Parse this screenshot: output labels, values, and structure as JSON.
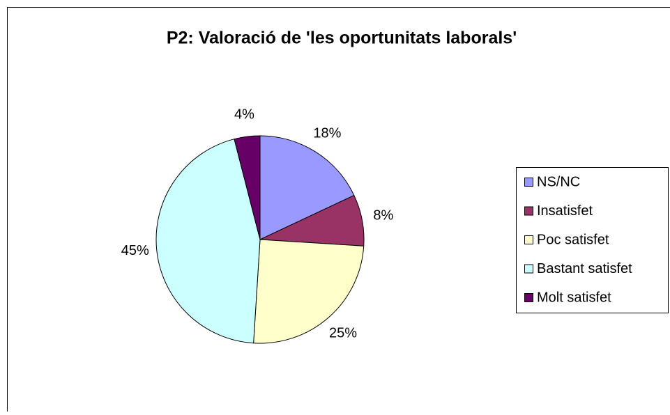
{
  "chart_data": {
    "type": "pie",
    "title": "P2: Valoració de 'les oportunitats laborals'",
    "categories": [
      "NS/NC",
      "Insatisfet",
      "Poc satisfet",
      "Bastant satisfet",
      "Molt satisfet"
    ],
    "values": [
      18,
      8,
      25,
      45,
      4
    ],
    "value_labels": [
      "18%",
      "8%",
      "25%",
      "45%",
      "4%"
    ],
    "colors": [
      "#9999ff",
      "#993366",
      "#ffffcc",
      "#ccffff",
      "#660066"
    ],
    "legend": "right"
  }
}
